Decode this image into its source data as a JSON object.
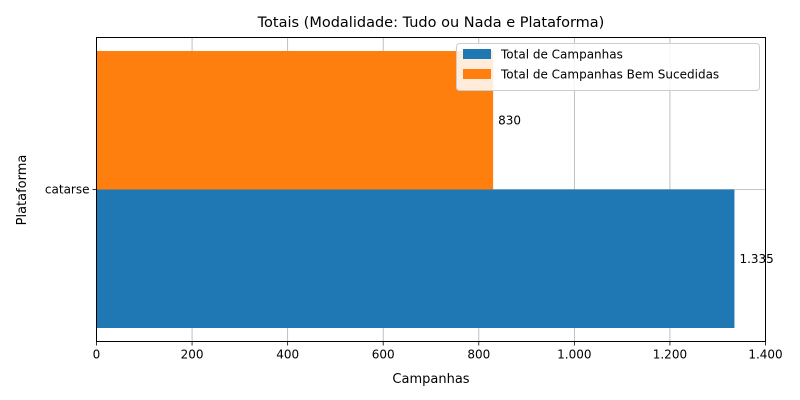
{
  "chart_data": {
    "type": "bar",
    "orientation": "horizontal",
    "title": "Totais (Modalidade: Tudo ou Nada e Plataforma)",
    "xlabel": "Campanhas",
    "ylabel": "Plataforma",
    "categories": [
      "catarse"
    ],
    "series": [
      {
        "name": "Total de Campanhas",
        "values": [
          1335
        ],
        "value_labels": [
          "1.335"
        ],
        "color": "#1f77b4"
      },
      {
        "name": "Total de Campanhas Bem Sucedidas",
        "values": [
          830
        ],
        "value_labels": [
          "830"
        ],
        "color": "#ff7f0e"
      }
    ],
    "xlim": [
      0,
      1400
    ],
    "xticks": [
      0,
      200,
      400,
      600,
      800,
      1000,
      1200,
      1400
    ],
    "xtick_labels": [
      "0",
      "200",
      "400",
      "600",
      "800",
      "1.000",
      "1.200",
      "1.400"
    ],
    "grid": true,
    "legend_position": "top-right"
  }
}
